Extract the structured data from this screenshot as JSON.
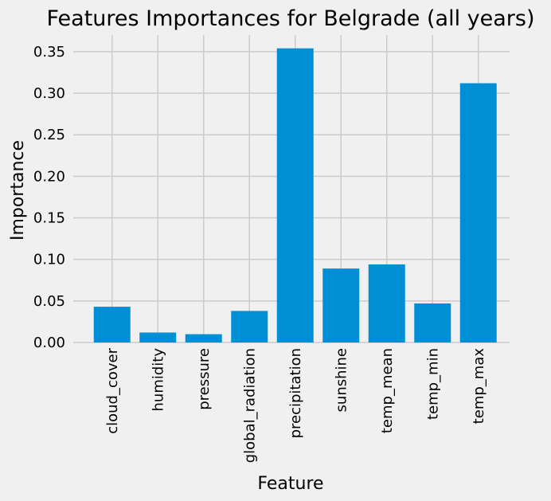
{
  "chart_data": {
    "type": "bar",
    "title": "Features Importances for Belgrade (all years)",
    "xlabel": "Feature",
    "ylabel": "Importance",
    "categories": [
      "cloud_cover",
      "humidity",
      "pressure",
      "global_radiation",
      "precipitation",
      "sunshine",
      "temp_mean",
      "temp_min",
      "temp_max"
    ],
    "values": [
      0.043,
      0.012,
      0.01,
      0.038,
      0.354,
      0.089,
      0.094,
      0.047,
      0.312
    ],
    "ylim": [
      0,
      0.37
    ],
    "yticks": [
      0.0,
      0.05,
      0.1,
      0.15,
      0.2,
      0.25,
      0.3,
      0.35
    ],
    "ytick_labels": [
      "0.00",
      "0.05",
      "0.10",
      "0.15",
      "0.20",
      "0.25",
      "0.30",
      "0.35"
    ],
    "grid": true,
    "style": "fivethirtyeight",
    "colors": {
      "bar": "#008fd5",
      "background": "#f0f0f0",
      "grid": "#cbcbcb"
    }
  }
}
